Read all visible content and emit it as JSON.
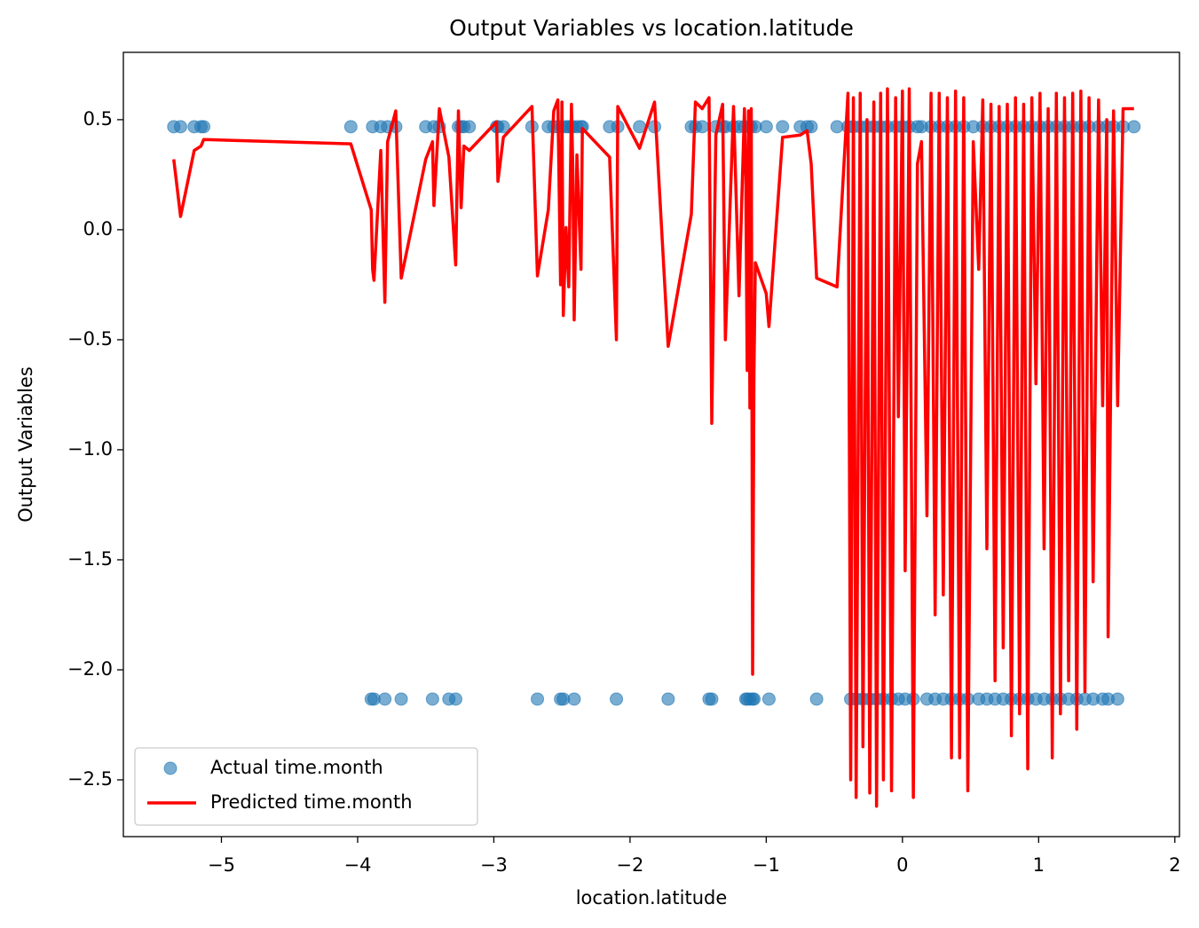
{
  "chart_data": {
    "type": "scatter",
    "title": "Output Variables vs location.latitude",
    "x_label": "location.latitude",
    "y_label": "Output Variables",
    "xlim": [
      -5.72,
      2.034
    ],
    "ylim": [
      -2.758,
      0.806
    ],
    "xticks": [
      {
        "value": -5,
        "label": "−5"
      },
      {
        "value": -4,
        "label": "−4"
      },
      {
        "value": -3,
        "label": "−3"
      },
      {
        "value": -2,
        "label": "−2"
      },
      {
        "value": -1,
        "label": "−1"
      },
      0,
      1,
      2
    ],
    "yticks": [
      {
        "value": 0.5,
        "label": "0.5"
      },
      {
        "value": 0,
        "label": "0.0"
      },
      {
        "value": -0.5,
        "label": "−0.5"
      },
      {
        "value": -1,
        "label": "−1.0"
      },
      {
        "value": -1.5,
        "label": "−1.5"
      },
      {
        "value": -2,
        "label": "−2.0"
      },
      {
        "value": -2.5,
        "label": "−2.5"
      }
    ],
    "legend": "lower left",
    "x": [
      -5.35,
      -5.3,
      -5.2,
      -5.15,
      -5.13,
      -4.05,
      -3.9,
      -3.89,
      -3.88,
      -3.83,
      -3.8,
      -3.78,
      -3.72,
      -3.68,
      -3.5,
      -3.45,
      -3.44,
      -3.4,
      -3.33,
      -3.28,
      -3.26,
      -3.24,
      -3.22,
      -3.18,
      -2.98,
      -2.97,
      -2.93,
      -2.72,
      -2.68,
      -2.6,
      -2.56,
      -2.53,
      -2.51,
      -2.5,
      -2.49,
      -2.47,
      -2.45,
      -2.43,
      -2.42,
      -2.41,
      -2.39,
      -2.36,
      -2.35,
      -2.15,
      -2.1,
      -2.09,
      -1.93,
      -1.82,
      -1.72,
      -1.55,
      -1.52,
      -1.47,
      -1.42,
      -1.4,
      -1.37,
      -1.32,
      -1.3,
      -1.24,
      -1.2,
      -1.16,
      -1.15,
      -1.14,
      -1.13,
      -1.12,
      -1.11,
      -1.1,
      -1.09,
      -1.08,
      -1.0,
      -0.98,
      -0.88,
      -0.75,
      -0.7,
      -0.67,
      -0.63,
      -0.48,
      -0.4,
      -0.38,
      -0.36,
      -0.34,
      -0.31,
      -0.29,
      -0.26,
      -0.24,
      -0.21,
      -0.19,
      -0.16,
      -0.14,
      -0.11,
      -0.08,
      -0.05,
      -0.03,
      0.0,
      0.02,
      0.05,
      0.08,
      0.11,
      0.14,
      0.18,
      0.21,
      0.24,
      0.27,
      0.3,
      0.33,
      0.36,
      0.39,
      0.42,
      0.45,
      0.48,
      0.52,
      0.56,
      0.59,
      0.62,
      0.65,
      0.68,
      0.71,
      0.74,
      0.77,
      0.8,
      0.83,
      0.86,
      0.89,
      0.92,
      0.95,
      0.98,
      1.01,
      1.04,
      1.07,
      1.1,
      1.13,
      1.16,
      1.19,
      1.22,
      1.25,
      1.28,
      1.31,
      1.34,
      1.37,
      1.4,
      1.44,
      1.47,
      1.5,
      1.51,
      1.55,
      1.58,
      1.62,
      1.7
    ],
    "series": [
      {
        "name": "Actual time.month",
        "type": "scatter",
        "color": "#1f77b4",
        "opacity": 0.6,
        "values": [
          0.468,
          0.468,
          0.468,
          0.468,
          0.468,
          0.468,
          -2.133,
          0.468,
          -2.133,
          0.468,
          -2.133,
          0.468,
          0.468,
          -2.133,
          0.468,
          -2.133,
          0.468,
          0.468,
          -2.133,
          -2.133,
          0.468,
          0.468,
          0.468,
          0.468,
          0.468,
          0.468,
          0.468,
          0.468,
          -2.133,
          0.468,
          0.468,
          0.468,
          -2.133,
          0.468,
          -2.133,
          0.468,
          0.468,
          0.468,
          0.468,
          -2.133,
          0.468,
          0.468,
          0.468,
          0.468,
          -2.133,
          0.468,
          0.468,
          0.468,
          -2.133,
          0.468,
          0.468,
          0.468,
          -2.133,
          -2.133,
          0.468,
          0.468,
          0.468,
          0.468,
          0.468,
          0.468,
          -2.133,
          -2.133,
          0.468,
          -2.133,
          0.468,
          -2.133,
          -2.133,
          0.468,
          0.468,
          -2.133,
          0.468,
          0.468,
          0.468,
          0.468,
          -2.133,
          0.468,
          0.468,
          -2.133,
          0.468,
          -2.133,
          0.468,
          -2.133,
          0.468,
          -2.133,
          0.468,
          -2.133,
          0.468,
          -2.133,
          0.468,
          -2.133,
          0.468,
          -2.133,
          0.468,
          -2.133,
          0.468,
          -2.133,
          0.468,
          0.468,
          -2.133,
          0.468,
          -2.133,
          0.468,
          -2.133,
          0.468,
          -2.133,
          0.468,
          -2.133,
          0.468,
          -2.133,
          0.468,
          -2.133,
          0.468,
          -2.133,
          0.468,
          -2.133,
          0.468,
          -2.133,
          0.468,
          -2.133,
          0.468,
          -2.133,
          0.468,
          -2.133,
          0.468,
          -2.133,
          0.468,
          -2.133,
          0.468,
          -2.133,
          0.468,
          -2.133,
          0.468,
          -2.133,
          0.468,
          -2.133,
          0.468,
          -2.133,
          0.468,
          -2.133,
          0.468,
          -2.133,
          0.468,
          -2.133,
          0.468,
          -2.133,
          0.468,
          0.468
        ]
      },
      {
        "name": "Predicted time.month",
        "type": "line",
        "color": "#ff0000",
        "values": [
          0.32,
          0.06,
          0.36,
          0.38,
          0.41,
          0.39,
          0.09,
          -0.18,
          -0.23,
          0.36,
          -0.33,
          0.4,
          0.54,
          -0.22,
          0.32,
          0.4,
          0.11,
          0.55,
          0.33,
          -0.16,
          0.54,
          0.1,
          0.38,
          0.36,
          0.49,
          0.22,
          0.42,
          0.56,
          -0.21,
          0.09,
          0.54,
          0.59,
          -0.25,
          0.58,
          -0.39,
          0.01,
          -0.26,
          0.57,
          0.27,
          -0.41,
          0.34,
          -0.18,
          0.46,
          0.33,
          -0.5,
          0.56,
          0.37,
          0.58,
          -0.53,
          0.07,
          0.58,
          0.55,
          0.6,
          -0.88,
          0.43,
          0.57,
          -0.5,
          0.56,
          -0.3,
          0.55,
          0.23,
          -0.64,
          0.54,
          -0.81,
          0.55,
          -2.02,
          -0.65,
          -0.15,
          -0.29,
          -0.44,
          0.42,
          0.43,
          0.45,
          0.3,
          -0.22,
          -0.26,
          0.62,
          -2.5,
          0.6,
          -2.58,
          0.62,
          -2.35,
          0.5,
          -2.56,
          0.58,
          -2.62,
          0.62,
          -2.5,
          0.64,
          -2.55,
          0.6,
          -0.85,
          0.63,
          -1.55,
          0.64,
          -2.58,
          0.3,
          0.4,
          -1.3,
          0.62,
          -1.75,
          0.62,
          -1.66,
          0.6,
          -2.4,
          0.63,
          -2.4,
          0.6,
          -2.55,
          0.4,
          -0.18,
          0.59,
          -1.45,
          0.57,
          -2.05,
          0.56,
          -1.9,
          0.57,
          -2.3,
          0.6,
          -2.2,
          0.57,
          -2.45,
          0.6,
          -0.7,
          0.62,
          -1.45,
          0.55,
          -2.4,
          0.62,
          -2.2,
          0.6,
          -2.05,
          0.62,
          -2.27,
          0.63,
          -2.1,
          0.6,
          -1.6,
          0.59,
          -0.8,
          0.5,
          -1.85,
          0.54,
          -0.8,
          0.55,
          0.55
        ]
      }
    ]
  }
}
